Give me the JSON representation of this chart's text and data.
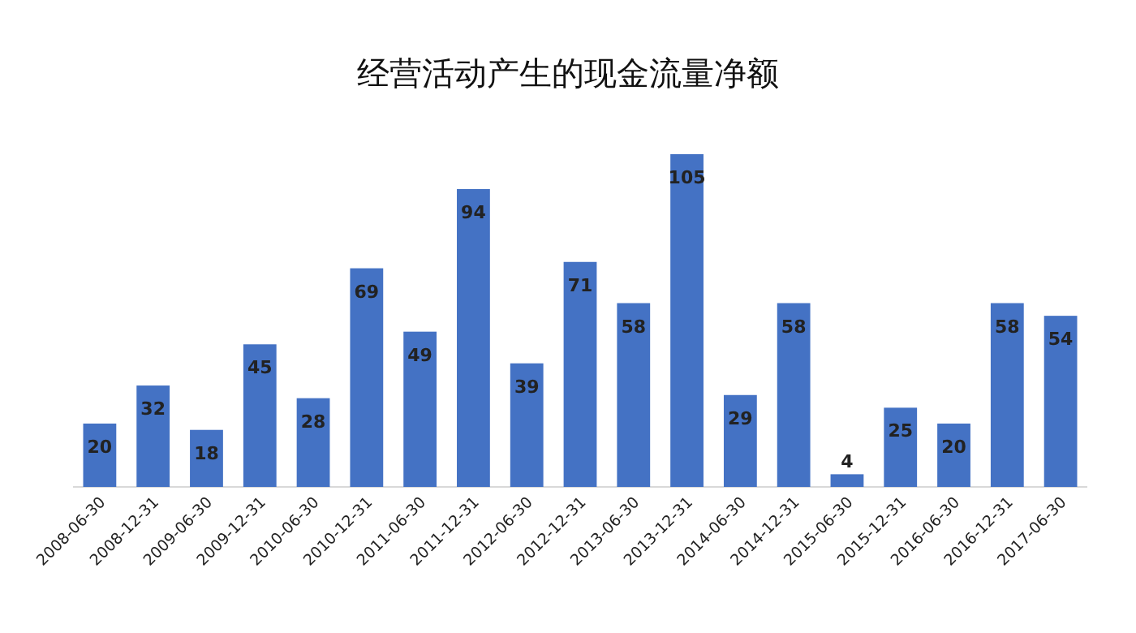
{
  "chart_data": {
    "type": "bar",
    "title": "经营活动产生的现金流量净额",
    "categories": [
      "2008-06-30",
      "2008-12-31",
      "2009-06-30",
      "2009-12-31",
      "2010-06-30",
      "2010-12-31",
      "2011-06-30",
      "2011-12-31",
      "2012-06-30",
      "2012-12-31",
      "2013-06-30",
      "2013-12-31",
      "2014-06-30",
      "2014-12-31",
      "2015-06-30",
      "2015-12-31",
      "2016-06-30",
      "2016-12-31",
      "2017-06-30"
    ],
    "values": [
      20,
      32,
      18,
      45,
      28,
      69,
      49,
      94,
      39,
      71,
      58,
      105,
      29,
      58,
      4,
      25,
      20,
      58,
      54
    ],
    "color": "#4472c4",
    "data_labels": true
  }
}
